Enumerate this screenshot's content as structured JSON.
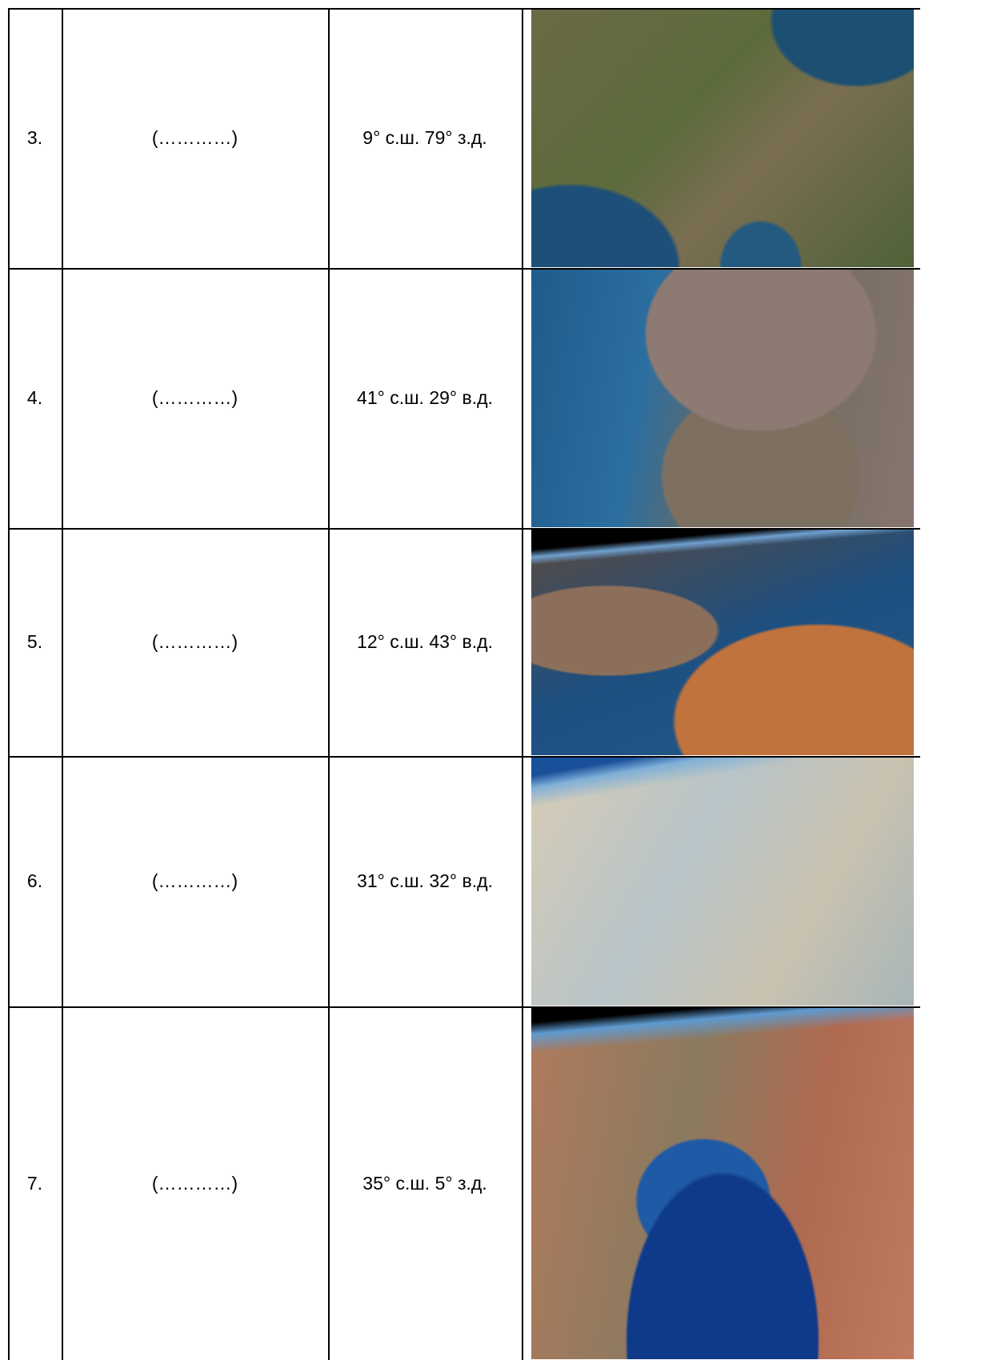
{
  "table": {
    "rows": [
      [
        "3.",
        "(…………)",
        "9° с.ш. 79° з.д."
      ],
      [
        "4.",
        "(…………)",
        "41° с.ш. 29° в.д."
      ],
      [
        "5.",
        "(…………)",
        "12° с.ш. 43° в.д."
      ],
      [
        "6.",
        "(…………)",
        "31° с.ш. 32° в.д."
      ],
      [
        "7.",
        "(…………)",
        "35° с.ш. 5° з.д."
      ]
    ]
  }
}
